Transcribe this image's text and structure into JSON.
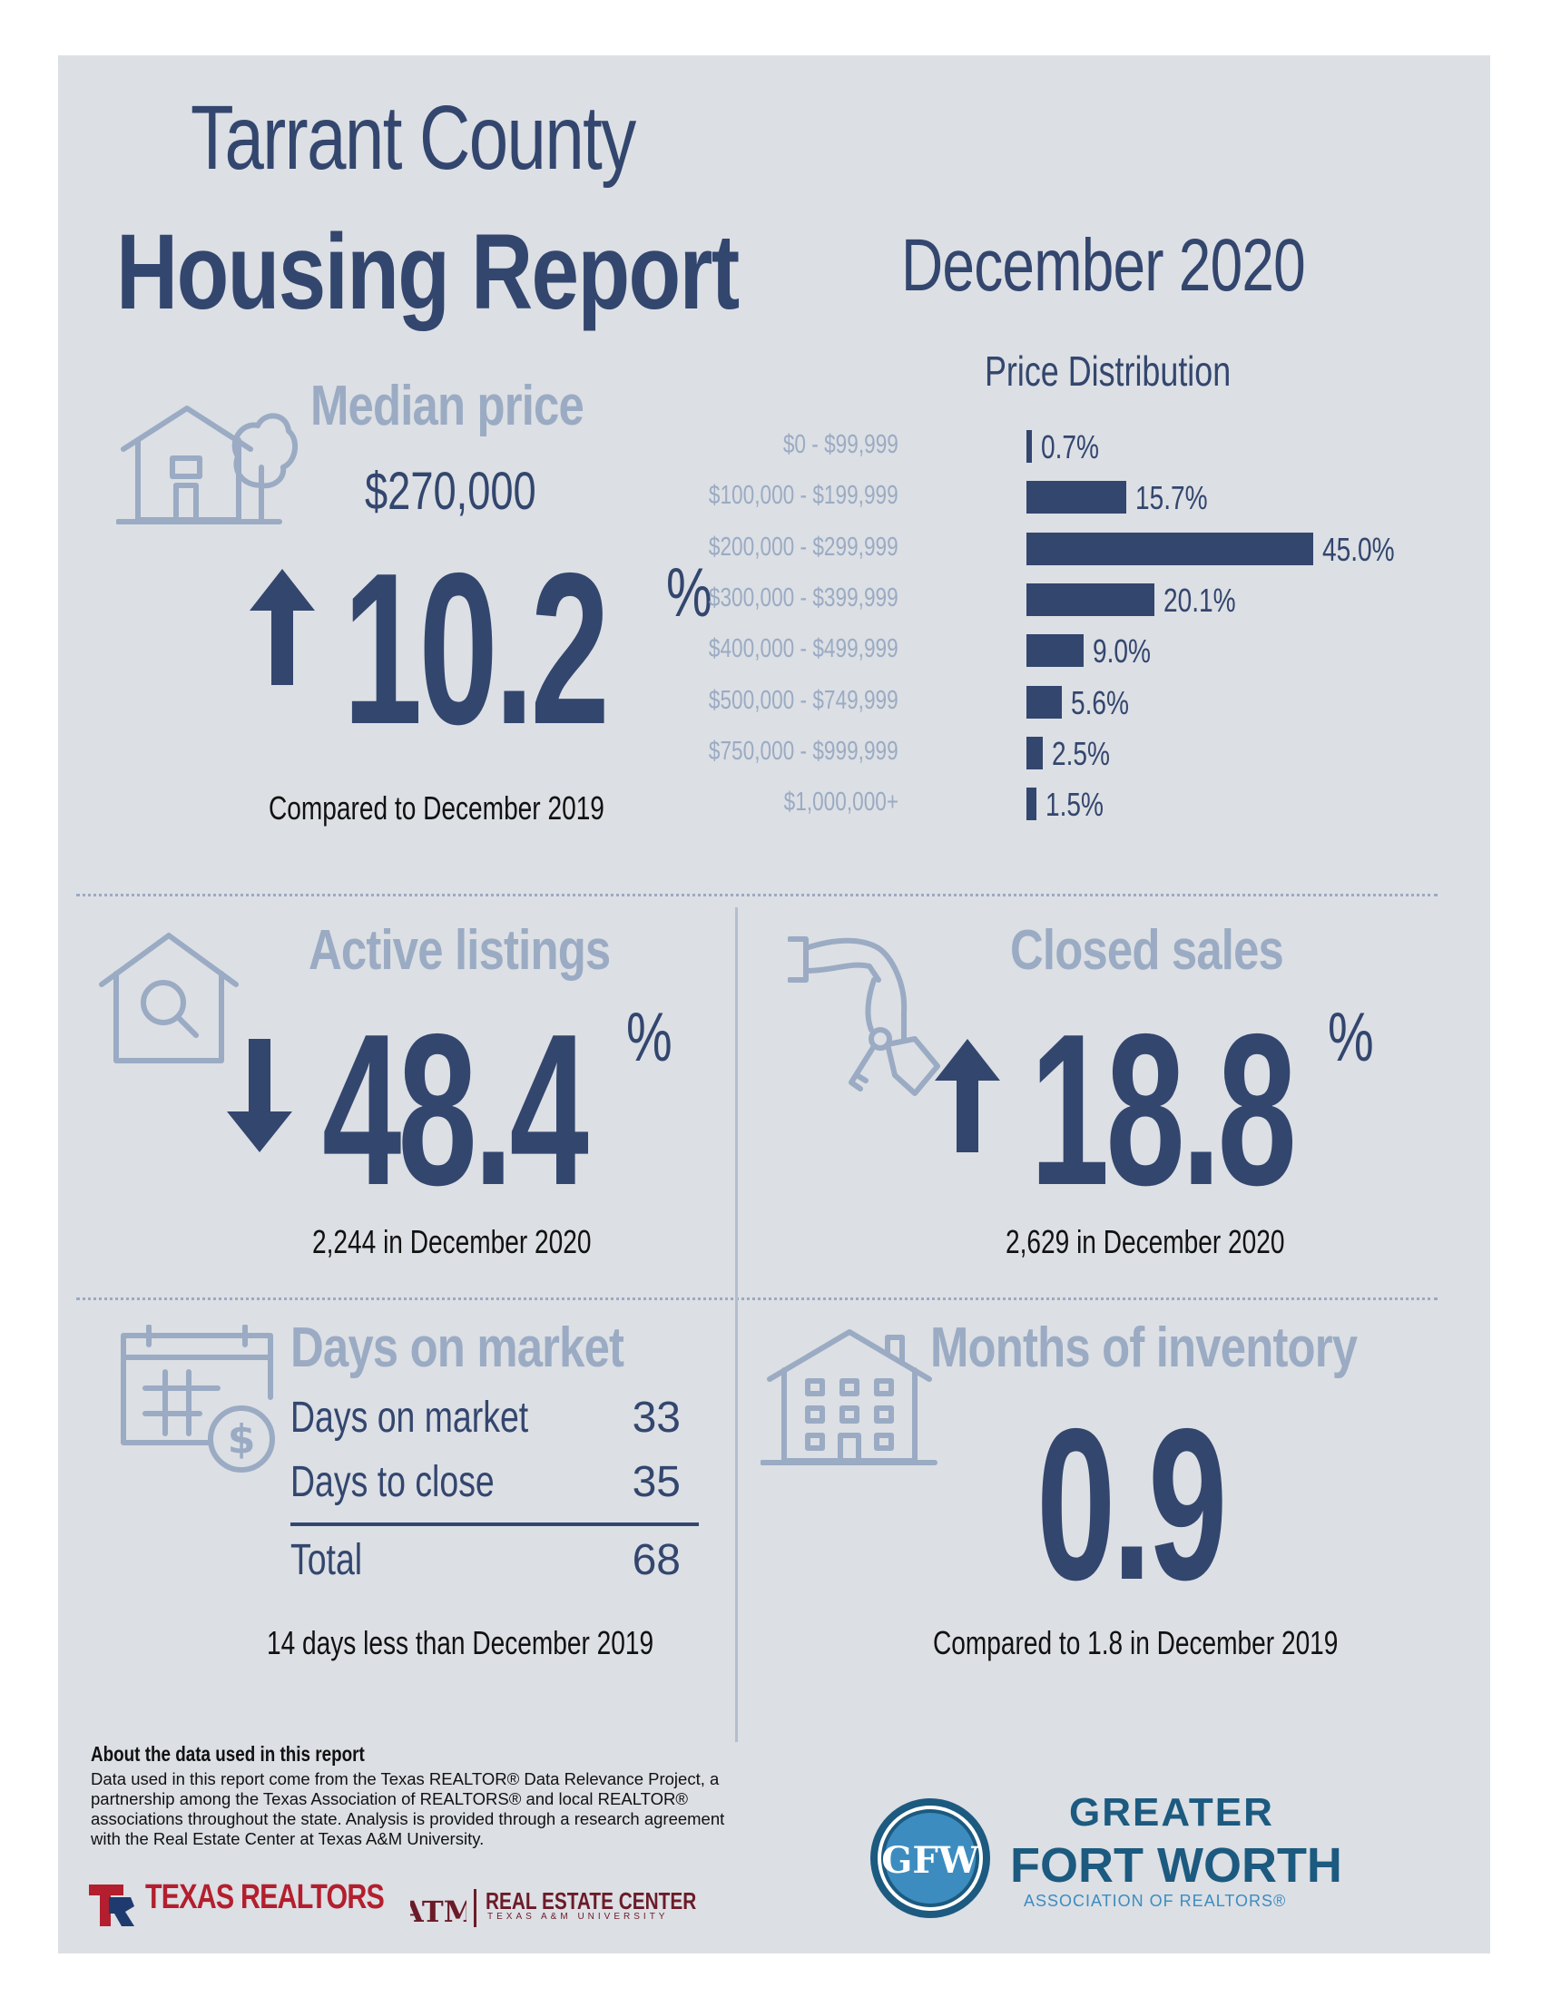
{
  "header": {
    "title_line1": "Tarrant County",
    "title_line2": "Housing Report",
    "month": "December 2020"
  },
  "median_price": {
    "title": "Median price",
    "value": "$270,000",
    "direction": "up",
    "change": "10.2",
    "pct_sign": "%",
    "caption": "Compared to December 2019"
  },
  "price_distribution": {
    "title": "Price Distribution",
    "rows": [
      {
        "label": "$0 - $99,999",
        "value_label": "0.7%"
      },
      {
        "label": "$100,000 - $199,999",
        "value_label": "15.7%"
      },
      {
        "label": "$200,000 - $299,999",
        "value_label": "45.0%"
      },
      {
        "label": "$300,000 - $399,999",
        "value_label": "20.1%"
      },
      {
        "label": "$400,000 - $499,999",
        "value_label": "9.0%"
      },
      {
        "label": "$500,000 - $749,999",
        "value_label": "5.6%"
      },
      {
        "label": "$750,000 - $999,999",
        "value_label": "2.5%"
      },
      {
        "label": "$1,000,000+",
        "value_label": "1.5%"
      }
    ]
  },
  "chart_data": {
    "type": "bar",
    "orientation": "horizontal",
    "title": "Price Distribution",
    "categories": [
      "$0 - $99,999",
      "$100,000 - $199,999",
      "$200,000 - $299,999",
      "$300,000 - $399,999",
      "$400,000 - $499,999",
      "$500,000 - $749,999",
      "$750,000 - $999,999",
      "$1,000,000+"
    ],
    "values": [
      0.7,
      15.7,
      45.0,
      20.1,
      9.0,
      5.6,
      2.5,
      1.5
    ],
    "xlim": [
      0,
      45
    ],
    "grid": false
  },
  "active_listings": {
    "title": "Active listings",
    "direction": "down",
    "change": "48.4",
    "pct_sign": "%",
    "caption": "2,244 in December 2020"
  },
  "closed_sales": {
    "title": "Closed sales",
    "direction": "up",
    "change": "18.8",
    "pct_sign": "%",
    "caption": "2,629 in December 2020"
  },
  "days_on_market": {
    "title": "Days on market",
    "rows": [
      {
        "label": "Days on market",
        "value": "33"
      },
      {
        "label": "Days to close",
        "value": "35"
      }
    ],
    "total_label": "Total",
    "total_value": "68",
    "caption": "14 days less than December 2019"
  },
  "months_inventory": {
    "title": "Months of inventory",
    "value": "0.9",
    "caption": "Compared to 1.8 in December 2019"
  },
  "about": {
    "heading": "About the data used in this report",
    "text": "Data used in this report come from the Texas REALTOR® Data Relevance Project, a partnership among the Texas Association of REALTORS® and local REALTOR® associations throughout the state. Analysis is provided through a research agreement with the Real Estate Center at Texas A&M University."
  },
  "logos": {
    "texas_realtors": "TEXAS REALTORS",
    "rec_name": "REAL ESTATE CENTER",
    "rec_sub": "TEXAS A&M UNIVERSITY",
    "gfw_line1": "GREATER",
    "gfw_line2": "FORT WORTH",
    "gfw_line3": "ASSOCIATION OF REALTORS®",
    "gfw_monogram": "GFW"
  },
  "colors": {
    "navy": "#33466e",
    "muted": "#9aabc3",
    "panel": "#dcdfe4",
    "texas_red": "#b31f2e",
    "gfw_blue": "#1c5a80"
  }
}
